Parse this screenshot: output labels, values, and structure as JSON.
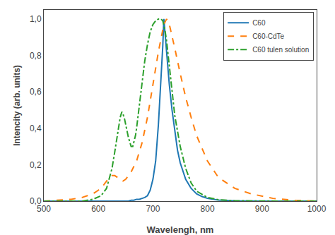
{
  "chart_data": {
    "type": "line",
    "xlabel": "Wavelengh, nm",
    "ylabel": "Intencity (arb. units)",
    "xlim": [
      500,
      1000
    ],
    "ylim": [
      0.0,
      1.05
    ],
    "xticks": [
      500,
      600,
      700,
      800,
      900,
      1000
    ],
    "yticks": [
      {
        "value": 0.0,
        "label": "0,0"
      },
      {
        "value": 0.2,
        "label": "0,2"
      },
      {
        "value": 0.4,
        "label": "0,4"
      },
      {
        "value": 0.6,
        "label": "0,6"
      },
      {
        "value": 0.8,
        "label": "0,8"
      },
      {
        "value": 1.0,
        "label": "1,0"
      }
    ],
    "grid": false,
    "legend": "upper right",
    "series": [
      {
        "name": "C60",
        "line_style": "solid",
        "x": [
          500,
          580,
          620,
          640,
          650,
          655,
          660,
          665,
          670,
          675,
          680,
          685,
          690,
          695,
          700,
          705,
          710,
          715,
          718,
          720,
          722,
          725,
          730,
          735,
          740,
          745,
          750,
          760,
          770,
          780,
          790,
          800,
          820,
          850,
          900,
          950,
          1000
        ],
        "values": [
          0.0,
          0.0,
          0.0,
          0.0,
          0.0,
          0.0,
          0.005,
          0.005,
          0.01,
          0.01,
          0.015,
          0.02,
          0.03,
          0.06,
          0.12,
          0.22,
          0.42,
          0.68,
          0.85,
          1.0,
          0.93,
          0.82,
          0.64,
          0.5,
          0.38,
          0.28,
          0.21,
          0.12,
          0.07,
          0.04,
          0.025,
          0.015,
          0.006,
          0.002,
          0.0,
          0.0,
          0.0
        ]
      },
      {
        "name": "C60-CdTe",
        "line_style": "dashed",
        "x": [
          500,
          530,
          550,
          560,
          570,
          580,
          590,
          600,
          605,
          610,
          615,
          620,
          625,
          630,
          635,
          640,
          645,
          650,
          660,
          670,
          680,
          690,
          700,
          710,
          720,
          725,
          730,
          735,
          740,
          750,
          760,
          770,
          780,
          800,
          820,
          850,
          880,
          920,
          960,
          1000
        ],
        "values": [
          0.0,
          0.005,
          0.01,
          0.015,
          0.02,
          0.03,
          0.04,
          0.06,
          0.07,
          0.09,
          0.11,
          0.13,
          0.14,
          0.14,
          0.13,
          0.12,
          0.11,
          0.12,
          0.16,
          0.22,
          0.32,
          0.46,
          0.64,
          0.82,
          0.97,
          1.0,
          0.97,
          0.91,
          0.84,
          0.7,
          0.57,
          0.46,
          0.36,
          0.22,
          0.13,
          0.07,
          0.04,
          0.015,
          0.005,
          0.0
        ]
      },
      {
        "name": "C60 tulen solution",
        "line_style": "dashdot",
        "x": [
          500,
          570,
          590,
          605,
          615,
          620,
          625,
          630,
          635,
          638,
          640,
          643,
          645,
          648,
          650,
          653,
          655,
          658,
          660,
          663,
          665,
          668,
          670,
          675,
          680,
          685,
          690,
          695,
          700,
          705,
          710,
          715,
          718,
          720,
          722,
          725,
          730,
          735,
          740,
          750,
          760,
          770,
          780,
          800,
          820,
          850,
          900,
          950,
          1000
        ],
        "values": [
          0.0,
          0.0,
          0.01,
          0.03,
          0.07,
          0.12,
          0.18,
          0.27,
          0.37,
          0.42,
          0.46,
          0.49,
          0.48,
          0.45,
          0.42,
          0.38,
          0.35,
          0.32,
          0.3,
          0.3,
          0.32,
          0.36,
          0.4,
          0.52,
          0.65,
          0.77,
          0.86,
          0.93,
          0.97,
          0.99,
          1.0,
          1.0,
          0.99,
          0.97,
          0.94,
          0.88,
          0.74,
          0.6,
          0.47,
          0.3,
          0.18,
          0.1,
          0.055,
          0.02,
          0.008,
          0.002,
          0.0,
          0.0,
          0.0
        ]
      }
    ]
  }
}
